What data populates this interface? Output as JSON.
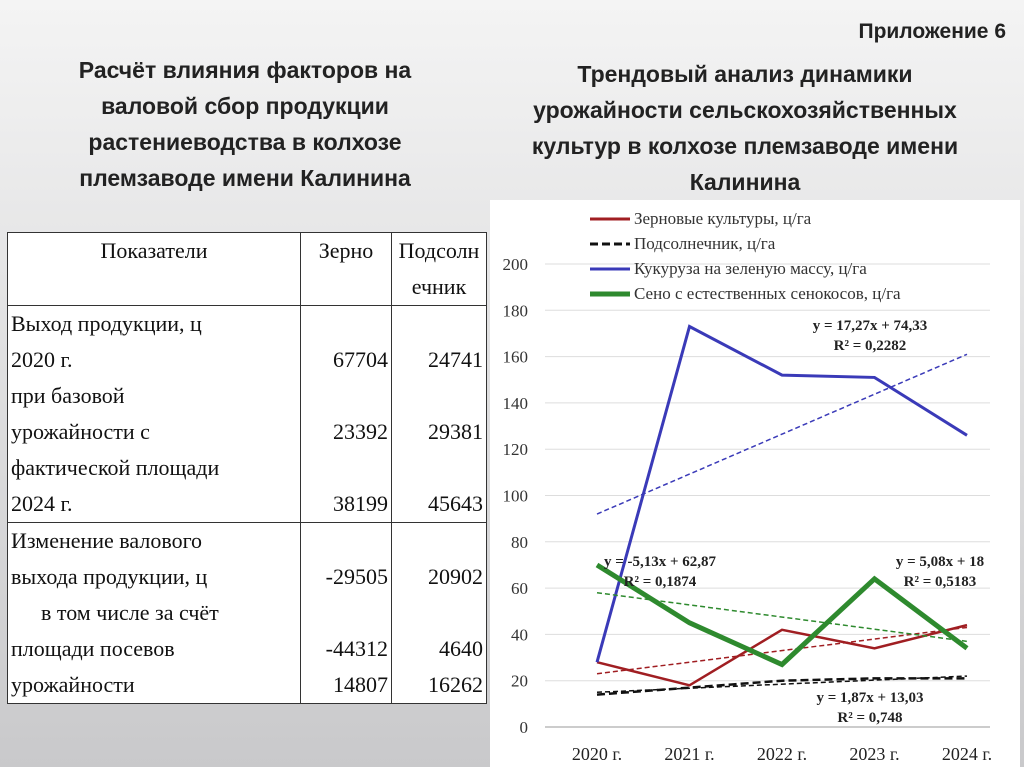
{
  "header": {
    "appendix": "Приложение 6",
    "left_title": "Расчёт влияния факторов на валовой сбор продукции растениеводства в колхозе племзаводе имени Калинина",
    "right_title": "Трендовый анализ динамики урожайности сельскохозяйственных культур в колхозе племзаводе имени Калинина"
  },
  "table": {
    "header": [
      "Показатели",
      "Зерно",
      "Подсолнечник"
    ],
    "groups": [
      {
        "lines": [
          "Выход продукции, ц",
          "2020 г.",
          "при базовой",
          "урожайности с",
          "фактической площади",
          "2024 г."
        ],
        "grain": [
          67704,
          23392,
          38199
        ],
        "sunflower": [
          24741,
          29381,
          45643
        ]
      },
      {
        "lines": [
          "Изменение валового",
          "выхода продукции, ц",
          "в том числе за счёт",
          "площади посевов",
          "урожайности"
        ],
        "grain": [
          -29505,
          -44312,
          14807
        ],
        "sunflower": [
          20902,
          4640,
          16262
        ]
      }
    ]
  },
  "chart_data": {
    "type": "line",
    "categories": [
      "2020 г.",
      "2021 г.",
      "2022 г.",
      "2023 г.",
      "2024 г."
    ],
    "ylim": [
      0,
      200
    ],
    "yticks": [
      0,
      20,
      40,
      60,
      80,
      100,
      120,
      140,
      160,
      180,
      200
    ],
    "series": [
      {
        "name": "Зерновые культуры, ц/га",
        "color": "#a01e22",
        "dash": false,
        "values": [
          28,
          18,
          42,
          34,
          44
        ],
        "trend": {
          "values": [
            23,
            43
          ],
          "equation": "y = 5,08x + 18",
          "r2": "R² = 0,5183"
        }
      },
      {
        "name": "Подсолнечник, ц/га",
        "color": "#111111",
        "dash": true,
        "values": [
          14,
          17,
          20,
          21,
          21
        ],
        "trend": {
          "values": [
            15,
            22
          ],
          "equation": "y = 1,87x + 13,03",
          "r2": "R² = 0,748"
        }
      },
      {
        "name": "Кукуруза на зеленую массу, ц/га",
        "color": "#3a3ab8",
        "dash": false,
        "values": [
          28,
          173,
          152,
          151,
          126
        ],
        "trend": {
          "values": [
            92,
            161
          ],
          "equation": "y = 17,27x + 74,33",
          "r2": "R² = 0,2282"
        }
      },
      {
        "name": "Сено с естественных сенокосов, ц/га",
        "color": "#2e8a2e",
        "dash": false,
        "values": [
          70,
          45,
          27,
          64,
          34
        ],
        "trend": {
          "values": [
            58,
            37
          ],
          "equation": "y = -5,13x + 62,87",
          "r2": "R² = 0,1874"
        }
      }
    ]
  }
}
